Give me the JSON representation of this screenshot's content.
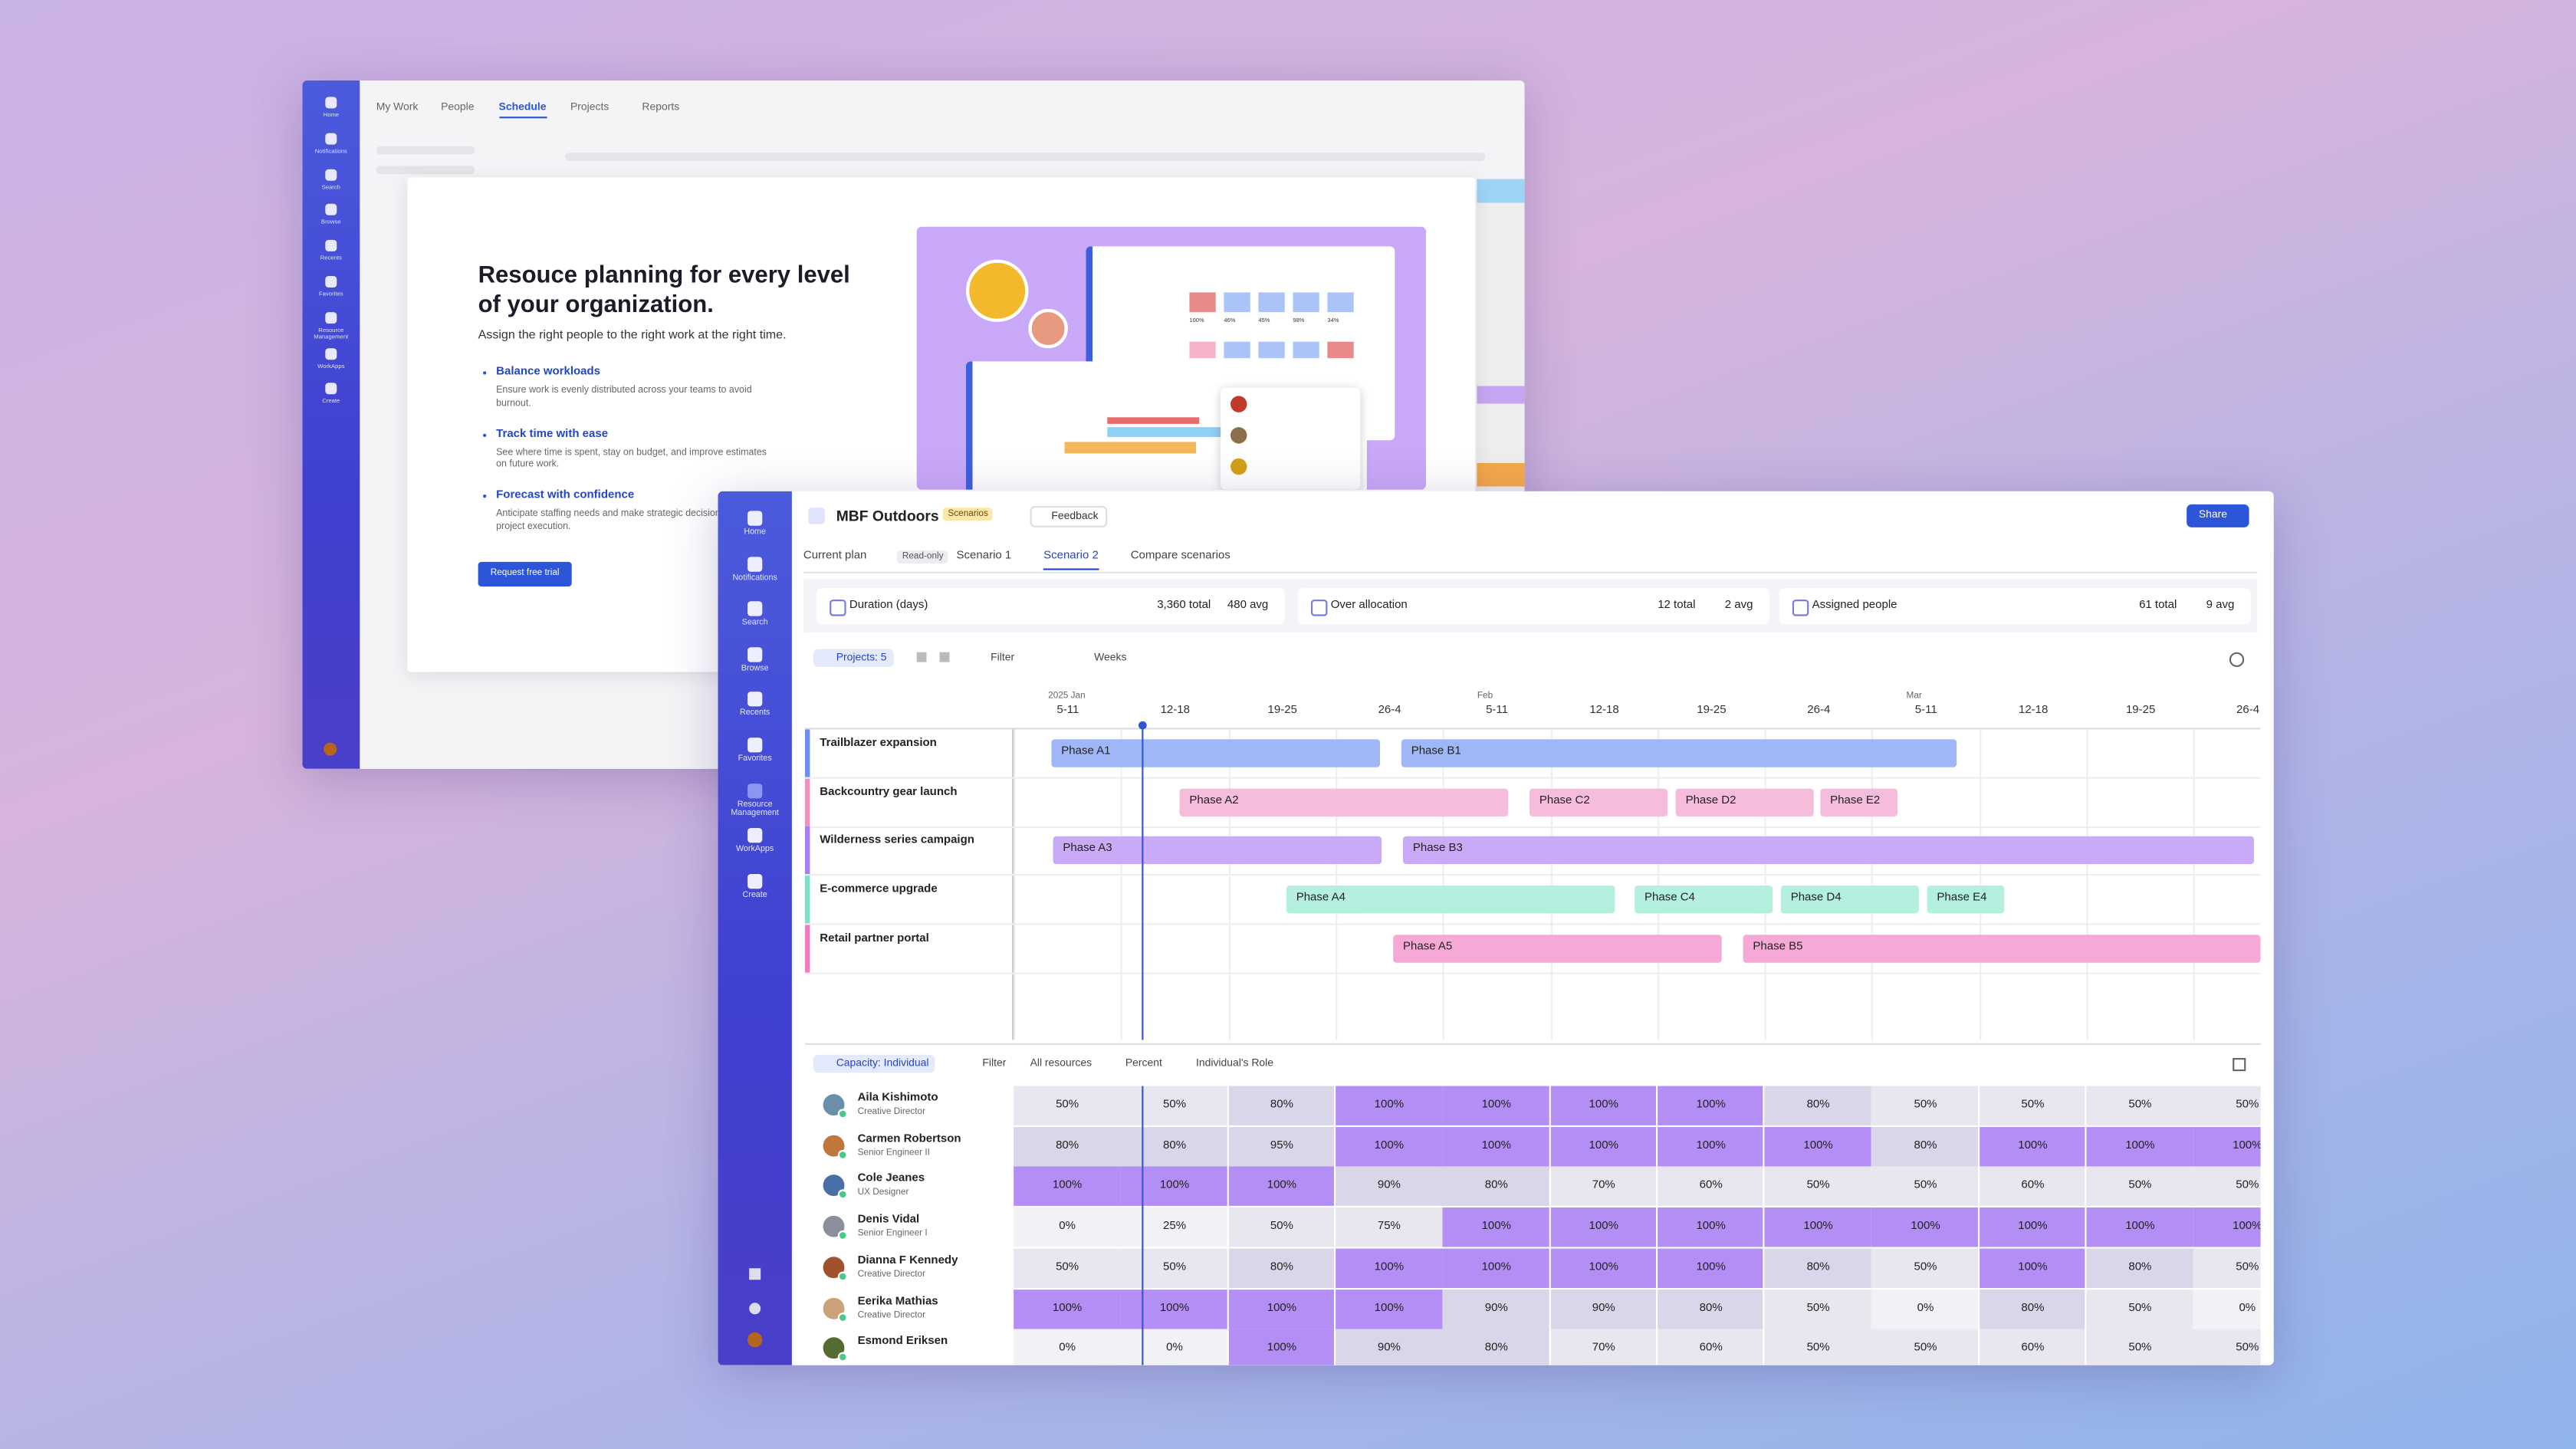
{
  "back_window": {
    "sidebar": [
      "Home",
      "Notifications",
      "Search",
      "Browse",
      "Recents",
      "Favorites",
      "Resource Management",
      "WorkApps",
      "Create"
    ],
    "tabs": [
      "My Work",
      "People",
      "Schedule",
      "Projects",
      "Reports"
    ],
    "modal": {
      "title": "Resouce planning for every level of your organization.",
      "subtitle": "Assign the right people to the right work at the right time.",
      "features": [
        {
          "title": "Balance workloads",
          "text": "Ensure work is evenly distributed across your teams to avoid burnout."
        },
        {
          "title": "Track time with ease",
          "text": "See where time is spent, stay on budget, and improve estimates on future work."
        },
        {
          "title": "Forecast with confidence",
          "text": "Anticipate staffing needs and make strategic decisions to improve project execution."
        }
      ],
      "button": "Request free trial",
      "illustration_labels": [
        "100%",
        "46%",
        "45%",
        "98%",
        "34%"
      ]
    }
  },
  "front_window": {
    "sidebar": [
      "Home",
      "Notifications",
      "Search",
      "Browse",
      "Recents",
      "Favorites",
      "Resource Management",
      "WorkApps",
      "Create"
    ],
    "title": "MBF Outdoors",
    "badge": "Scenarios",
    "feedback": "Feedback",
    "share": "Share",
    "tabs": [
      {
        "label": "Current plan",
        "badge": "Read-only"
      },
      {
        "label": "Scenario 1"
      },
      {
        "label": "Scenario 2"
      },
      {
        "label": "Compare scenarios"
      }
    ],
    "stats": [
      {
        "label": "Duration (days)",
        "total": "3,360 total",
        "avg": "480 avg"
      },
      {
        "label": "Over allocation",
        "total": "12 total",
        "avg": "2 avg"
      },
      {
        "label": "Assigned people",
        "total": "61 total",
        "avg": "9 avg"
      }
    ],
    "toolbar": {
      "projects": "Projects: 5",
      "filter": "Filter",
      "scale": "Weeks"
    },
    "timeline": {
      "months": [
        "2025 Jan",
        null,
        null,
        null,
        "Feb",
        null,
        null,
        null,
        "Mar",
        null,
        null,
        null
      ],
      "weeks": [
        "5-11",
        "12-18",
        "19-25",
        "26-4",
        "5-11",
        "12-18",
        "19-25",
        "26-4",
        "5-11",
        "12-18",
        "19-25",
        "26-4"
      ]
    },
    "projects": [
      {
        "name": "Trailblazer expansion",
        "phases": [
          "Phase A1",
          "Phase B1"
        ]
      },
      {
        "name": "Backcountry gear launch",
        "phases": [
          "Phase A2",
          "Phase C2",
          "Phase D2",
          "Phase E2"
        ]
      },
      {
        "name": "Wilderness series campaign",
        "phases": [
          "Phase A3",
          "Phase B3"
        ]
      },
      {
        "name": "E-commerce upgrade",
        "phases": [
          "Phase A4",
          "Phase C4",
          "Phase D4",
          "Phase E4"
        ]
      },
      {
        "name": "Retail partner portal",
        "phases": [
          "Phase A5",
          "Phase B5"
        ]
      }
    ],
    "capacity_toolbar": {
      "view": "Capacity: Individual",
      "filter": "Filter",
      "resources": "All resources",
      "unit": "Percent",
      "group": "Individual's Role"
    },
    "people": [
      {
        "name": "Aila Kishimoto",
        "role": "Creative Director",
        "values": [
          "50%",
          "50%",
          "80%",
          "100%",
          "100%",
          "100%",
          "100%",
          "80%",
          "50%",
          "50%",
          "50%",
          "50%"
        ]
      },
      {
        "name": "Carmen Robertson",
        "role": "Senior Engineer II",
        "values": [
          "80%",
          "80%",
          "95%",
          "100%",
          "100%",
          "100%",
          "100%",
          "100%",
          "80%",
          "100%",
          "100%",
          "100%"
        ]
      },
      {
        "name": "Cole Jeanes",
        "role": "UX Designer",
        "values": [
          "100%",
          "100%",
          "100%",
          "90%",
          "80%",
          "70%",
          "60%",
          "50%",
          "50%",
          "60%",
          "50%",
          "50%"
        ]
      },
      {
        "name": "Denis Vidal",
        "role": "Senior Engineer I",
        "values": [
          "0%",
          "25%",
          "50%",
          "75%",
          "100%",
          "100%",
          "100%",
          "100%",
          "100%",
          "100%",
          "100%",
          "100%"
        ]
      },
      {
        "name": "Dianna F Kennedy",
        "role": "Creative Director",
        "values": [
          "50%",
          "50%",
          "80%",
          "100%",
          "100%",
          "100%",
          "100%",
          "80%",
          "50%",
          "100%",
          "80%",
          "50%"
        ]
      },
      {
        "name": "Eerika Mathias",
        "role": "Creative Director",
        "values": [
          "100%",
          "100%",
          "100%",
          "100%",
          "90%",
          "90%",
          "80%",
          "50%",
          "0%",
          "80%",
          "50%",
          "0%"
        ]
      },
      {
        "name": "Esmond Eriksen",
        "values": [
          "0%",
          "0%",
          "100%",
          "90%",
          "80%",
          "70%",
          "60%",
          "50%",
          "50%",
          "60%",
          "50%",
          "50%"
        ]
      }
    ]
  }
}
